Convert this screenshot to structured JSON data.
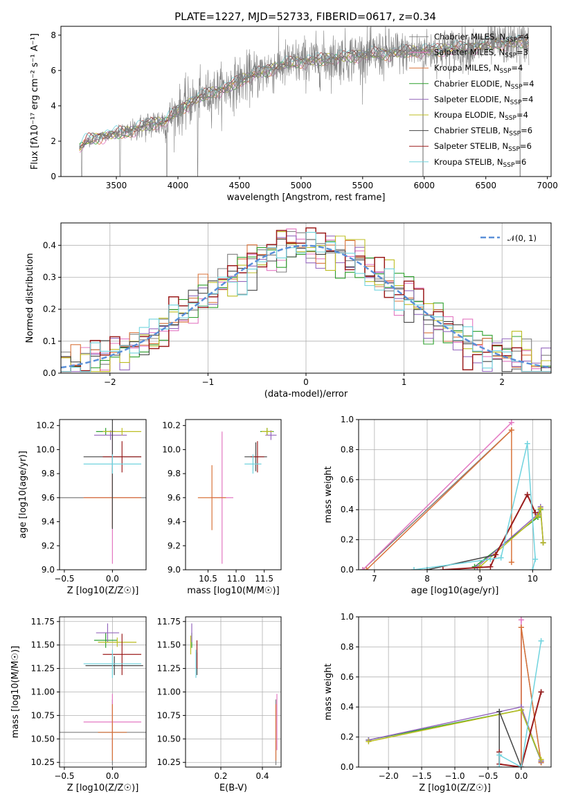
{
  "colors": {
    "chabrier_miles": "#7f7f7f",
    "salpeter_miles": "#e377c2",
    "kroupa_miles": "#d9733a",
    "chabrier_elodie": "#2ca02c",
    "salpeter_elodie": "#9467bd",
    "kroupa_elodie": "#bcbd22",
    "chabrier_stelib": "#444444",
    "salpeter_stelib": "#9b1c1c",
    "kroupa_stelib": "#6fd3de",
    "normal": "#5a8fd8"
  },
  "chart_data": [
    {
      "type": "line",
      "title": "PLATE=1227, MJD=52733, FIBERID=0617, z=0.34",
      "xlabel": "wavelength [Angstrom, rest frame]",
      "ylabel": "Flux [fλ10⁻¹⁷ erg cm⁻² s⁻¹ A⁻¹]",
      "xlim": [
        3050,
        7030
      ],
      "ylim": [
        0,
        8.5
      ],
      "xticks": [
        "3500",
        "4000",
        "4500",
        "5000",
        "5500",
        "6000",
        "6500",
        "7000"
      ],
      "yticks": [
        "0",
        "2",
        "4",
        "6",
        "8"
      ],
      "legend_position": "upper right",
      "legend": [
        {
          "key": "chabrier_miles",
          "text": "Chabrier MILES, N_SSP=4"
        },
        {
          "key": "salpeter_miles",
          "text": "Salpeter MILES, N_SSP=3"
        },
        {
          "key": "kroupa_miles",
          "text": "Kroupa MILES, N_SSP=4"
        },
        {
          "key": "chabrier_elodie",
          "text": "Chabrier ELODIE, N_SSP=4"
        },
        {
          "key": "salpeter_elodie",
          "text": "Salpeter ELODIE, N_SSP=4"
        },
        {
          "key": "kroupa_elodie",
          "text": "Kroupa ELODIE, N_SSP=4"
        },
        {
          "key": "chabrier_stelib",
          "text": "Chabrier STELIB, N_SSP=6"
        },
        {
          "key": "salpeter_stelib",
          "text": "Salpeter STELIB, N_SSP=6"
        },
        {
          "key": "kroupa_stelib",
          "text": "Kroupa STELIB, N_SSP=6"
        }
      ],
      "continuum": {
        "x": [
          3200,
          3260,
          3400,
          3500,
          3600,
          3700,
          3800,
          3900,
          4000,
          4100,
          4200,
          4300,
          4400,
          4500,
          4600,
          4800,
          5000,
          5200,
          5400,
          5600,
          5800,
          6000,
          6200,
          6400,
          6600,
          6800,
          6850
        ],
        "y": [
          1.6,
          2.0,
          2.3,
          2.4,
          2.5,
          2.8,
          3.0,
          3.1,
          3.7,
          4.2,
          4.5,
          4.8,
          5.0,
          5.4,
          5.7,
          6.2,
          6.5,
          6.6,
          6.8,
          6.9,
          7.0,
          7.1,
          7.2,
          7.3,
          7.5,
          7.6,
          7.6
        ]
      },
      "data_range": [
        3200,
        6850
      ],
      "dropouts": [
        3220,
        3530,
        3910,
        4160,
        5990,
        6780
      ]
    },
    {
      "type": "histogram",
      "xlabel": "(data-model)/error",
      "ylabel": "Normed distribution",
      "xlim": [
        -2.5,
        2.5
      ],
      "ylim": [
        0,
        0.47
      ],
      "xticks": [
        "−2",
        "−1",
        "0",
        "1",
        "2"
      ],
      "yticks": [
        "0.0",
        "0.1",
        "0.2",
        "0.3",
        "0.4"
      ],
      "bin_width": 0.1,
      "legend_position": "upper right",
      "legend": [
        {
          "key": "normal",
          "text": "𝒩(0, 1)"
        }
      ]
    },
    {
      "type": "scatter",
      "xlabel": "Z [log10(Z/Z☉)]",
      "ylabel": "age  [log10(age/yr)]",
      "xlim": [
        -0.55,
        0.35
      ],
      "ylim": [
        9.0,
        10.25
      ],
      "xticks": [
        "−0.5",
        "0.0"
      ],
      "yticks": [
        "9.0",
        "9.2",
        "9.4",
        "9.6",
        "9.8",
        "10.0",
        "10.2"
      ],
      "points": [
        {
          "key": "chabrier_miles",
          "x": 0.0,
          "y": 9.6,
          "xerr": 0.55,
          "yerr": 0.25
        },
        {
          "key": "salpeter_miles",
          "x": 0.0,
          "y": 9.6,
          "xerr": 0.3,
          "yerr": 0.55
        },
        {
          "key": "kroupa_miles",
          "x": 0.0,
          "y": 9.6,
          "xerr": 0.3,
          "yerr": 0.25
        },
        {
          "key": "chabrier_elodie",
          "x": -0.07,
          "y": 10.15,
          "xerr": 0.1,
          "yerr": 0.03
        },
        {
          "key": "salpeter_elodie",
          "x": -0.02,
          "y": 10.12,
          "xerr": 0.17,
          "yerr": 0.04
        },
        {
          "key": "kroupa_elodie",
          "x": 0.1,
          "y": 10.15,
          "xerr": 0.2,
          "yerr": 0.03
        },
        {
          "key": "chabrier_stelib",
          "x": 0.0,
          "y": 9.94,
          "xerr": 0.3,
          "yerr": 0.6
        },
        {
          "key": "salpeter_stelib",
          "x": 0.1,
          "y": 9.94,
          "xerr": 0.2,
          "yerr": 0.13
        },
        {
          "key": "kroupa_stelib",
          "x": 0.0,
          "y": 9.88,
          "xerr": 0.3,
          "yerr": 0.08
        }
      ]
    },
    {
      "type": "scatter",
      "xlabel": "mass [log10(M/M☉)]",
      "ylabel": "",
      "xlim": [
        10.1,
        11.8
      ],
      "ylim": [
        9.0,
        10.25
      ],
      "xticks": [
        "10.5",
        "11.0",
        "11.5"
      ],
      "yticks": [
        "9.0",
        "9.2",
        "9.4",
        "9.6",
        "9.8",
        "10.0",
        "10.2"
      ],
      "points": [
        {
          "key": "salpeter_miles",
          "x": 10.75,
          "y": 9.6,
          "xerr": 0.2,
          "yerr": 0.55
        },
        {
          "key": "kroupa_miles",
          "x": 10.57,
          "y": 9.6,
          "xerr": 0.25,
          "yerr": 0.27
        },
        {
          "key": "chabrier_elodie",
          "x": 11.55,
          "y": 10.15,
          "xerr": 0.12,
          "yerr": 0.03
        },
        {
          "key": "salpeter_elodie",
          "x": 11.62,
          "y": 10.12,
          "xerr": 0.1,
          "yerr": 0.04
        },
        {
          "key": "kroupa_elodie",
          "x": 11.55,
          "y": 10.15,
          "xerr": 0.1,
          "yerr": 0.03
        },
        {
          "key": "chabrier_stelib",
          "x": 11.35,
          "y": 9.94,
          "xerr": 0.2,
          "yerr": 0.12
        },
        {
          "key": "salpeter_stelib",
          "x": 11.38,
          "y": 9.94,
          "xerr": 0.12,
          "yerr": 0.13
        },
        {
          "key": "kroupa_stelib",
          "x": 11.3,
          "y": 9.88,
          "xerr": 0.15,
          "yerr": 0.08
        }
      ]
    },
    {
      "type": "line",
      "xlabel": "age  [log10(age/yr)]",
      "ylabel": "mass weight",
      "xlim": [
        6.7,
        10.35
      ],
      "ylim": [
        0,
        1.0
      ],
      "xticks": [
        "7",
        "8",
        "9",
        "10"
      ],
      "yticks": [
        "0.0",
        "0.2",
        "0.4",
        "0.6",
        "0.8",
        "1.0"
      ],
      "series": [
        {
          "key": "chabrier_miles",
          "x": [
            6.78,
            9.6
          ],
          "y": [
            0.0,
            0.93
          ]
        },
        {
          "key": "salpeter_miles",
          "x": [
            6.78,
            9.6
          ],
          "y": [
            0.0,
            0.98
          ]
        },
        {
          "key": "kroupa_miles",
          "x": [
            6.85,
            9.6,
            9.6
          ],
          "y": [
            0.0,
            0.93,
            0.05
          ]
        },
        {
          "key": "chabrier_elodie",
          "x": [
            8.9,
            10.1,
            10.15,
            10.2
          ],
          "y": [
            0.02,
            0.35,
            0.4,
            0.18
          ]
        },
        {
          "key": "salpeter_elodie",
          "x": [
            8.95,
            10.1,
            10.15,
            10.2
          ],
          "y": [
            0.02,
            0.37,
            0.42,
            0.18
          ]
        },
        {
          "key": "kroupa_elodie",
          "x": [
            9.0,
            10.1,
            10.15,
            10.2
          ],
          "y": [
            0.02,
            0.36,
            0.41,
            0.18
          ]
        },
        {
          "key": "chabrier_stelib",
          "x": [
            8.0,
            9.3,
            9.9,
            10.05
          ],
          "y": [
            0.0,
            0.1,
            0.5,
            0.38
          ]
        },
        {
          "key": "salpeter_stelib",
          "x": [
            8.3,
            9.2,
            9.3,
            9.9,
            10.05
          ],
          "y": [
            0.0,
            0.02,
            0.1,
            0.5,
            0.38
          ]
        },
        {
          "key": "kroupa_stelib",
          "x": [
            7.75,
            9.2,
            9.4,
            9.9,
            10.05,
            10.0
          ],
          "y": [
            0.0,
            0.07,
            0.08,
            0.84,
            0.07,
            0.0
          ]
        }
      ]
    },
    {
      "type": "scatter",
      "xlabel": "Z [log10(Z/Z☉)]",
      "ylabel": "mass [log10(M/M☉)]",
      "xlim": [
        -0.55,
        0.35
      ],
      "ylim": [
        10.2,
        11.8
      ],
      "xticks": [
        "−0.5",
        "0.0"
      ],
      "yticks": [
        "10.25",
        "10.50",
        "10.75",
        "11.00",
        "11.25",
        "11.50",
        "11.75"
      ],
      "points": [
        {
          "key": "chabrier_miles",
          "x": 0.0,
          "y": 10.57,
          "xerr": 0.55,
          "yerr": 0.35
        },
        {
          "key": "salpeter_miles",
          "x": 0.0,
          "y": 10.68,
          "xerr": 0.3,
          "yerr": 0.3
        },
        {
          "key": "kroupa_miles",
          "x": 0.0,
          "y": 10.57,
          "xerr": 0.15,
          "yerr": 0.3
        },
        {
          "key": "chabrier_elodie",
          "x": -0.07,
          "y": 11.55,
          "xerr": 0.12,
          "yerr": 0.08
        },
        {
          "key": "salpeter_elodie",
          "x": -0.05,
          "y": 11.63,
          "xerr": 0.12,
          "yerr": 0.1
        },
        {
          "key": "kroupa_elodie",
          "x": 0.05,
          "y": 11.53,
          "xerr": 0.2,
          "yerr": 0.05
        },
        {
          "key": "chabrier_stelib",
          "x": 0.02,
          "y": 11.28,
          "xerr": 0.3,
          "yerr": 0.1
        },
        {
          "key": "salpeter_stelib",
          "x": 0.1,
          "y": 11.4,
          "xerr": 0.2,
          "yerr": 0.22
        },
        {
          "key": "kroupa_stelib",
          "x": 0.0,
          "y": 11.3,
          "xerr": 0.3,
          "yerr": 0.15
        }
      ]
    },
    {
      "type": "scatter",
      "xlabel": "E(B-V)",
      "ylabel": "",
      "xlim": [
        0.03,
        0.49
      ],
      "ylim": [
        10.2,
        11.8
      ],
      "xticks": [
        "0.2",
        "0.4"
      ],
      "yticks": [
        "10.25",
        "10.50",
        "10.75",
        "11.00",
        "11.25",
        "11.50",
        "11.75"
      ],
      "points": [
        {
          "key": "chabrier_miles",
          "x": 0.465,
          "y": 10.57,
          "yerr": 0.35
        },
        {
          "key": "salpeter_miles",
          "x": 0.47,
          "y": 10.68,
          "yerr": 0.3
        },
        {
          "key": "kroupa_miles",
          "x": 0.465,
          "y": 10.57,
          "yerr": 0.3
        },
        {
          "key": "chabrier_elodie",
          "x": 0.06,
          "y": 11.55,
          "yerr": 0.08
        },
        {
          "key": "salpeter_elodie",
          "x": 0.06,
          "y": 11.63,
          "yerr": 0.1
        },
        {
          "key": "kroupa_elodie",
          "x": 0.055,
          "y": 11.5,
          "yerr": 0.1
        },
        {
          "key": "chabrier_stelib",
          "x": 0.085,
          "y": 11.3,
          "yerr": 0.12
        },
        {
          "key": "salpeter_stelib",
          "x": 0.085,
          "y": 11.4,
          "yerr": 0.15
        },
        {
          "key": "kroupa_stelib",
          "x": 0.08,
          "y": 11.3,
          "yerr": 0.15
        }
      ]
    },
    {
      "type": "line",
      "xlabel": "Z [log10(Z/Z☉)]",
      "ylabel": "mass weight",
      "xlim": [
        -2.45,
        0.45
      ],
      "ylim": [
        0,
        1.0
      ],
      "xticks": [
        "−2.0",
        "−1.5",
        "−1.0",
        "−0.5",
        "0.0"
      ],
      "yticks": [
        "0.0",
        "0.2",
        "0.4",
        "0.6",
        "0.8",
        "1.0"
      ],
      "series": [
        {
          "key": "chabrier_miles",
          "x": [
            0.0,
            0.0,
            0.3
          ],
          "y": [
            0.0,
            0.93,
            0.03
          ]
        },
        {
          "key": "salpeter_miles",
          "x": [
            0.0,
            0.0
          ],
          "y": [
            0.0,
            0.98
          ]
        },
        {
          "key": "kroupa_miles",
          "x": [
            0.0,
            0.0,
            0.3
          ],
          "y": [
            0.0,
            0.93,
            0.03
          ]
        },
        {
          "key": "chabrier_elodie",
          "x": [
            -2.3,
            0.0,
            0.3
          ],
          "y": [
            0.18,
            0.38,
            0.04
          ]
        },
        {
          "key": "salpeter_elodie",
          "x": [
            -2.3,
            0.0,
            0.3
          ],
          "y": [
            0.18,
            0.4,
            0.04
          ]
        },
        {
          "key": "kroupa_elodie",
          "x": [
            -2.3,
            0.0,
            0.3
          ],
          "y": [
            0.17,
            0.38,
            0.05
          ]
        },
        {
          "key": "chabrier_stelib",
          "x": [
            -0.33,
            -0.33,
            0.0,
            0.3
          ],
          "y": [
            0.1,
            0.37,
            0.0,
            0.5
          ]
        },
        {
          "key": "salpeter_stelib",
          "x": [
            -0.33,
            -0.33,
            0.0,
            0.3
          ],
          "y": [
            0.1,
            0.02,
            0.0,
            0.5
          ]
        },
        {
          "key": "kroupa_stelib",
          "x": [
            -0.33,
            -0.33,
            0.0,
            0.3
          ],
          "y": [
            0.0,
            0.08,
            0.0,
            0.84
          ]
        }
      ]
    }
  ]
}
